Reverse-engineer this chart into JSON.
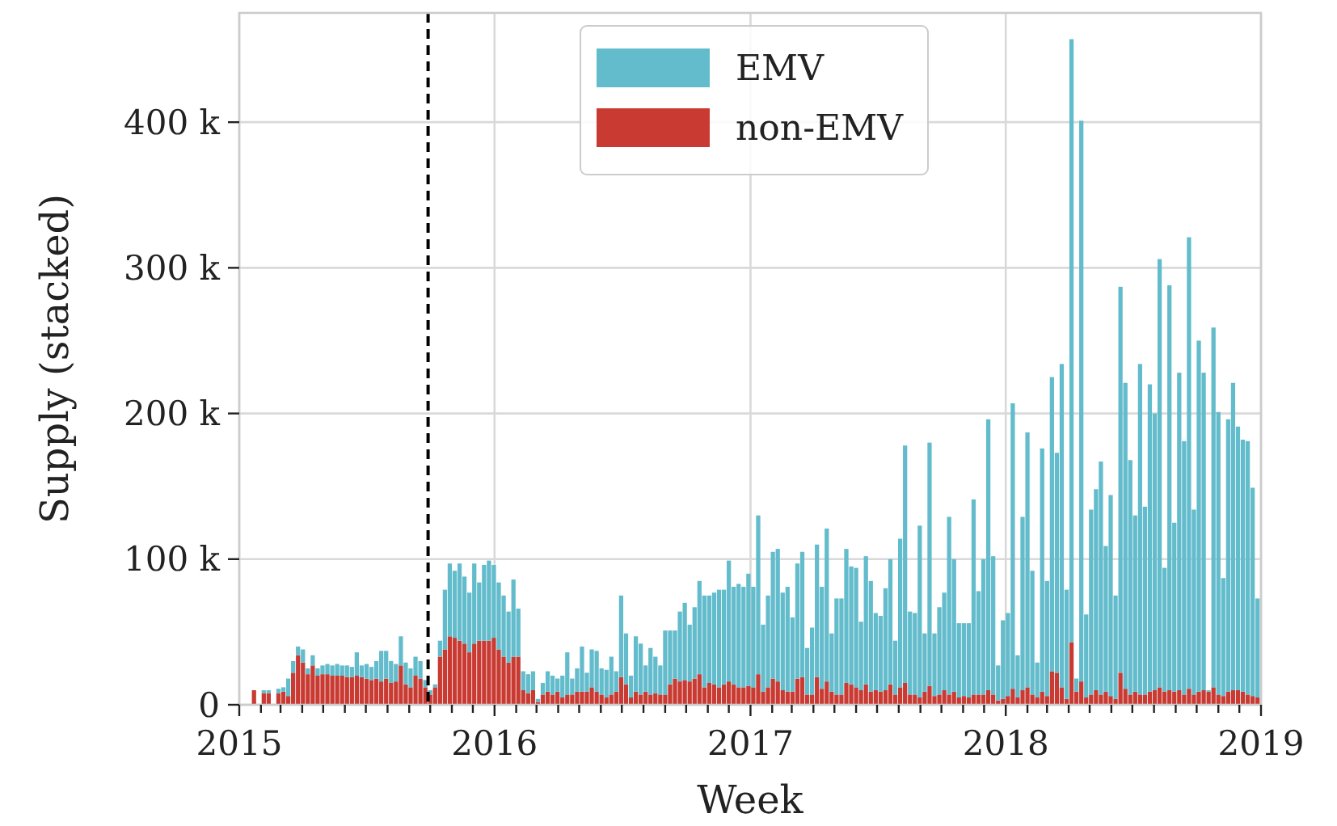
{
  "chart_data": {
    "type": "bar",
    "stacked": true,
    "xlabel": "Week",
    "ylabel": "Supply (stacked)",
    "x": [
      "2015-01-19",
      "2015-01-26",
      "2015-02-02",
      "2015-02-09",
      "2015-02-16",
      "2015-02-23",
      "2015-03-02",
      "2015-03-09",
      "2015-03-16",
      "2015-03-23",
      "2015-03-30",
      "2015-04-06",
      "2015-04-13",
      "2015-04-20",
      "2015-04-27",
      "2015-05-04",
      "2015-05-11",
      "2015-05-18",
      "2015-05-25",
      "2015-06-01",
      "2015-06-08",
      "2015-06-15",
      "2015-06-22",
      "2015-06-29",
      "2015-07-06",
      "2015-07-13",
      "2015-07-20",
      "2015-07-27",
      "2015-08-03",
      "2015-08-10",
      "2015-08-17",
      "2015-08-24",
      "2015-08-31",
      "2015-09-07",
      "2015-09-14",
      "2015-09-21",
      "2015-09-28",
      "2015-10-05",
      "2015-10-12",
      "2015-10-19",
      "2015-10-26",
      "2015-11-02",
      "2015-11-09",
      "2015-11-16",
      "2015-11-23",
      "2015-11-30",
      "2015-12-07",
      "2015-12-14",
      "2015-12-21",
      "2015-12-28",
      "2016-01-04",
      "2016-01-11",
      "2016-01-18",
      "2016-01-25",
      "2016-02-01",
      "2016-02-08",
      "2016-02-15",
      "2016-02-22",
      "2016-02-29",
      "2016-03-07",
      "2016-03-14",
      "2016-03-21",
      "2016-03-28",
      "2016-04-04",
      "2016-04-11",
      "2016-04-18",
      "2016-04-25",
      "2016-05-02",
      "2016-05-09",
      "2016-05-16",
      "2016-05-23",
      "2016-05-30",
      "2016-06-06",
      "2016-06-13",
      "2016-06-20",
      "2016-06-27",
      "2016-07-04",
      "2016-07-11",
      "2016-07-18",
      "2016-07-25",
      "2016-08-01",
      "2016-08-08",
      "2016-08-15",
      "2016-08-22",
      "2016-08-29",
      "2016-09-05",
      "2016-09-12",
      "2016-09-19",
      "2016-09-26",
      "2016-10-03",
      "2016-10-10",
      "2016-10-17",
      "2016-10-24",
      "2016-10-31",
      "2016-11-07",
      "2016-11-14",
      "2016-11-21",
      "2016-11-28",
      "2016-12-05",
      "2016-12-12",
      "2016-12-19",
      "2016-12-26",
      "2017-01-02",
      "2017-01-09",
      "2017-01-16",
      "2017-01-23",
      "2017-01-30",
      "2017-02-06",
      "2017-02-13",
      "2017-02-20",
      "2017-02-27",
      "2017-03-06",
      "2017-03-13",
      "2017-03-20",
      "2017-03-27",
      "2017-04-03",
      "2017-04-10",
      "2017-04-17",
      "2017-04-24",
      "2017-05-01",
      "2017-05-08",
      "2017-05-15",
      "2017-05-22",
      "2017-05-29",
      "2017-06-05",
      "2017-06-12",
      "2017-06-19",
      "2017-06-26",
      "2017-07-03",
      "2017-07-10",
      "2017-07-17",
      "2017-07-24",
      "2017-07-31",
      "2017-08-07",
      "2017-08-14",
      "2017-08-21",
      "2017-08-28",
      "2017-09-04",
      "2017-09-11",
      "2017-09-18",
      "2017-09-25",
      "2017-10-02",
      "2017-10-09",
      "2017-10-16",
      "2017-10-23",
      "2017-10-30",
      "2017-11-06",
      "2017-11-13",
      "2017-11-20",
      "2017-11-27",
      "2017-12-04",
      "2017-12-11",
      "2017-12-18",
      "2017-12-25",
      "2018-01-01",
      "2018-01-08",
      "2018-01-15",
      "2018-01-22",
      "2018-01-29",
      "2018-02-05",
      "2018-02-12",
      "2018-02-19",
      "2018-02-26",
      "2018-03-05",
      "2018-03-12",
      "2018-03-19",
      "2018-03-26",
      "2018-04-02",
      "2018-04-09",
      "2018-04-16",
      "2018-04-23",
      "2018-04-30",
      "2018-05-07",
      "2018-05-14",
      "2018-05-21",
      "2018-05-28",
      "2018-06-04",
      "2018-06-11",
      "2018-06-18",
      "2018-06-25",
      "2018-07-02",
      "2018-07-09",
      "2018-07-16",
      "2018-07-23",
      "2018-07-30",
      "2018-08-06",
      "2018-08-13",
      "2018-08-20",
      "2018-08-27",
      "2018-09-03",
      "2018-09-10",
      "2018-09-17",
      "2018-09-24",
      "2018-10-01",
      "2018-10-08",
      "2018-10-15",
      "2018-10-22",
      "2018-10-29",
      "2018-11-05",
      "2018-11-12",
      "2018-11-19",
      "2018-11-26",
      "2018-12-03",
      "2018-12-10",
      "2018-12-17",
      "2018-12-24"
    ],
    "series": [
      {
        "name": "non-EMV",
        "color": "#c83a32",
        "values": [
          10,
          null,
          8,
          8,
          null,
          8,
          9,
          6,
          22,
          34,
          29,
          21,
          27,
          20,
          21,
          21,
          20,
          20,
          20,
          19,
          19,
          20,
          19,
          18,
          17,
          18,
          16,
          18,
          15,
          16,
          27,
          14,
          12,
          20,
          18,
          12,
          7,
          12,
          33,
          38,
          47,
          46,
          44,
          42,
          36,
          42,
          44,
          44,
          44,
          46,
          38,
          33,
          29,
          33,
          33,
          10,
          8,
          10,
          2,
          7,
          9,
          7,
          9,
          5,
          7,
          7,
          9,
          9,
          9,
          12,
          9,
          7,
          5,
          7,
          9,
          19,
          14,
          5,
          9,
          7,
          9,
          7,
          8,
          7,
          7,
          14,
          18,
          16,
          17,
          16,
          18,
          21,
          12,
          15,
          14,
          12,
          14,
          16,
          14,
          12,
          12,
          13,
          12,
          21,
          9,
          12,
          18,
          16,
          10,
          9,
          9,
          18,
          19,
          7,
          7,
          19,
          11,
          16,
          9,
          7,
          7,
          15,
          14,
          12,
          10,
          14,
          9,
          10,
          9,
          10,
          14,
          7,
          12,
          15,
          7,
          7,
          5,
          9,
          13,
          6,
          7,
          10,
          7,
          9,
          5,
          6,
          5,
          7,
          7,
          7,
          10,
          7,
          3,
          4,
          6,
          11,
          5,
          10,
          12,
          7,
          5,
          9,
          6,
          23,
          22,
          12,
          4,
          43,
          9,
          16,
          5,
          7,
          10,
          7,
          9,
          6,
          4,
          22,
          11,
          7,
          9,
          7,
          7,
          9,
          10,
          12,
          9,
          10,
          9,
          10,
          7,
          11,
          7,
          9,
          10,
          9,
          12,
          7,
          6,
          9,
          10,
          10,
          9,
          7,
          6,
          5
        ]
      },
      {
        "name": "EMV",
        "color": "#63bccc",
        "values": [
          0,
          null,
          2,
          2,
          null,
          3,
          3,
          12,
          8,
          6,
          9,
          4,
          7,
          5,
          6,
          7,
          7,
          8,
          7,
          8,
          7,
          16,
          8,
          10,
          9,
          12,
          21,
          19,
          15,
          12,
          20,
          15,
          13,
          13,
          12,
          5,
          3,
          2,
          11,
          41,
          50,
          46,
          53,
          46,
          41,
          55,
          40,
          52,
          55,
          50,
          46,
          42,
          35,
          53,
          33,
          13,
          13,
          13,
          2,
          8,
          14,
          13,
          9,
          15,
          29,
          11,
          16,
          31,
          13,
          26,
          28,
          18,
          19,
          26,
          14,
          56,
          35,
          15,
          38,
          35,
          18,
          32,
          25,
          20,
          44,
          37,
          33,
          48,
          53,
          39,
          49,
          64,
          63,
          60,
          63,
          67,
          65,
          83,
          67,
          71,
          69,
          77,
          69,
          109,
          46,
          63,
          87,
          91,
          67,
          72,
          51,
          79,
          86,
          32,
          46,
          91,
          70,
          105,
          40,
          66,
          66,
          92,
          81,
          82,
          47,
          88,
          76,
          53,
          52,
          70,
          86,
          37,
          102,
          163,
          57,
          56,
          118,
          40,
          167,
          43,
          60,
          67,
          122,
          91,
          51,
          50,
          51,
          134,
          71,
          93,
          186,
          95,
          24,
          54,
          57,
          196,
          29,
          119,
          175,
          85,
          24,
          167,
          79,
          202,
          151,
          222,
          75,
          414,
          9,
          385,
          57,
          127,
          138,
          160,
          100,
          138,
          71,
          265,
          210,
          161,
          121,
          227,
          129,
          211,
          190,
          294,
          85,
          278,
          116,
          218,
          174,
          310,
          127,
          241,
          218,
          1,
          247,
          194,
          81,
          187,
          211,
          181,
          173,
          174,
          143,
          68
        ]
      }
    ],
    "xlim": [
      "2015",
      "2019"
    ],
    "xticks": [
      {
        "value": "2015",
        "label": "2015"
      },
      {
        "value": "2015-02",
        "label": null
      },
      {
        "value": "2015-03",
        "label": null
      },
      {
        "value": "2015-04",
        "label": null
      },
      {
        "value": "2015-05",
        "label": null
      },
      {
        "value": "2015-06",
        "label": null
      },
      {
        "value": "2015-07",
        "label": null
      },
      {
        "value": "2015-08",
        "label": null
      },
      {
        "value": "2015-09",
        "label": null
      },
      {
        "value": "2015-10",
        "label": null
      },
      {
        "value": "2015-11",
        "label": null
      },
      {
        "value": "2015-12",
        "label": null
      },
      {
        "value": "2016",
        "label": "2016"
      },
      {
        "value": "2016-02",
        "label": null
      },
      {
        "value": "2016-03",
        "label": null
      },
      {
        "value": "2016-04",
        "label": null
      },
      {
        "value": "2016-05",
        "label": null
      },
      {
        "value": "2016-06",
        "label": null
      },
      {
        "value": "2016-07",
        "label": null
      },
      {
        "value": "2016-08",
        "label": null
      },
      {
        "value": "2016-09",
        "label": null
      },
      {
        "value": "2016-10",
        "label": null
      },
      {
        "value": "2016-11",
        "label": null
      },
      {
        "value": "2016-12",
        "label": null
      },
      {
        "value": "2017",
        "label": "2017"
      },
      {
        "value": "2017-02",
        "label": null
      },
      {
        "value": "2017-03",
        "label": null
      },
      {
        "value": "2017-04",
        "label": null
      },
      {
        "value": "2017-05",
        "label": null
      },
      {
        "value": "2017-06",
        "label": null
      },
      {
        "value": "2017-07",
        "label": null
      },
      {
        "value": "2017-08",
        "label": null
      },
      {
        "value": "2017-09",
        "label": null
      },
      {
        "value": "2017-10",
        "label": null
      },
      {
        "value": "2017-11",
        "label": null
      },
      {
        "value": "2017-12",
        "label": null
      },
      {
        "value": "2018",
        "label": "2018"
      },
      {
        "value": "2018-02",
        "label": null
      },
      {
        "value": "2018-03",
        "label": null
      },
      {
        "value": "2018-04",
        "label": null
      },
      {
        "value": "2018-05",
        "label": null
      },
      {
        "value": "2018-06",
        "label": null
      },
      {
        "value": "2018-07",
        "label": null
      },
      {
        "value": "2018-08",
        "label": null
      },
      {
        "value": "2018-09",
        "label": null
      },
      {
        "value": "2018-10",
        "label": null
      },
      {
        "value": "2018-11",
        "label": null
      },
      {
        "value": "2018-12",
        "label": null
      },
      {
        "value": "2019",
        "label": "2019"
      }
    ],
    "ylim": [
      0,
      475
    ],
    "yticks": [
      {
        "value": 0,
        "label": "0"
      },
      {
        "value": 100,
        "label": "100 k"
      },
      {
        "value": 200,
        "label": "200 k"
      },
      {
        "value": 300,
        "label": "300 k"
      },
      {
        "value": 400,
        "label": "400 k"
      }
    ],
    "ref_lines": [
      {
        "axis": "x",
        "value": "2015-09-28",
        "color": "#000000",
        "line_style": "dashed"
      }
    ],
    "grid": true,
    "legend": "top"
  }
}
